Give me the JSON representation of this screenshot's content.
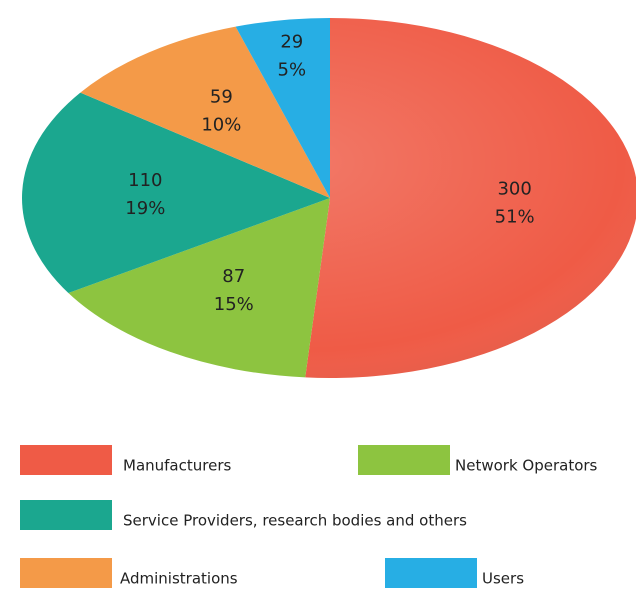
{
  "chart_data": {
    "type": "pie",
    "categories": [
      "Manufacturers",
      "Network Operators",
      "Service Providers, research bodies and others",
      "Administrations",
      "Users"
    ],
    "values": [
      300,
      87,
      110,
      59,
      29
    ],
    "percent_labels": [
      "51%",
      "15%",
      "19%",
      "10%",
      "5%"
    ],
    "colors": [
      "#ef5b46",
      "#8dc440",
      "#1ba78f",
      "#f49a48",
      "#27aee4"
    ],
    "start": "top",
    "direction": "clockwise",
    "legend": "bottom"
  }
}
